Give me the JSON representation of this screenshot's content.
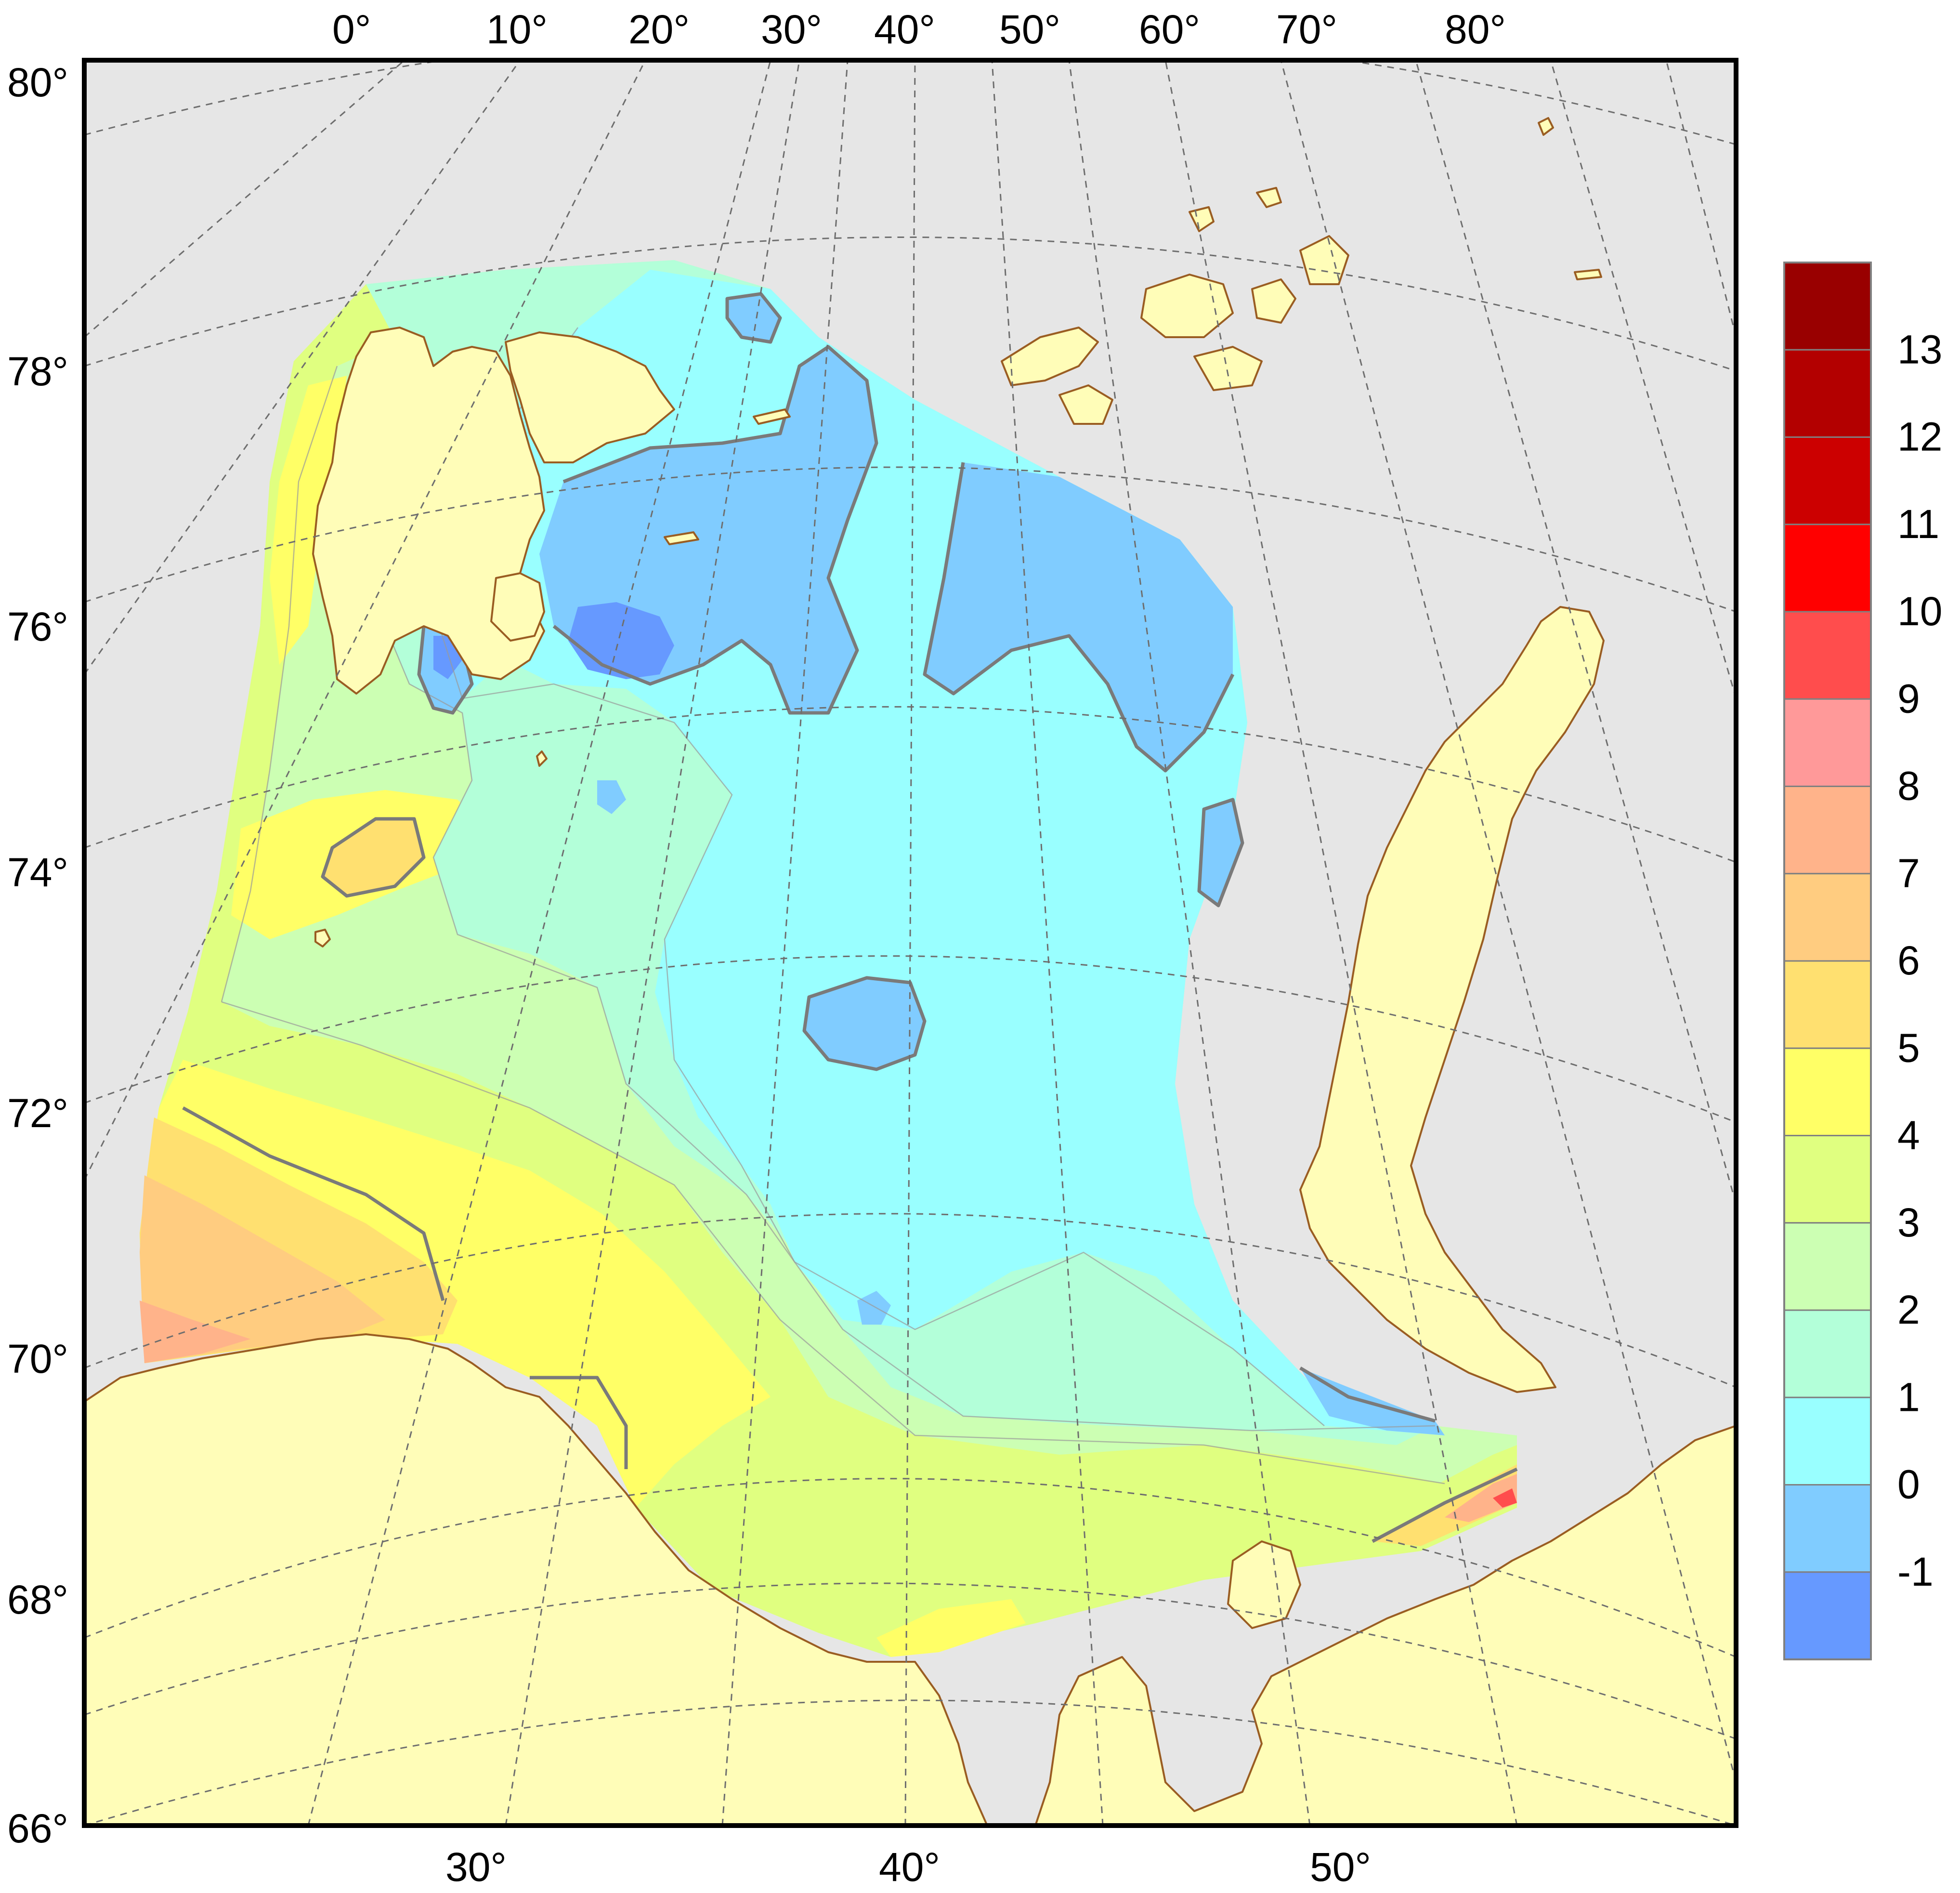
{
  "top_longitude_labels": [
    "0°",
    "10°",
    "20°",
    "30°",
    "40°",
    "50°",
    "60°",
    "70°",
    "80°"
  ],
  "left_latitude_labels": [
    "80°",
    "78°",
    "76°",
    "74°",
    "72°",
    "70°",
    "68°",
    "66°"
  ],
  "bottom_longitude_labels": [
    "30°",
    "40°",
    "50°"
  ],
  "legend": {
    "labels": [
      "13",
      "12",
      "11",
      "10",
      "9",
      "8",
      "7",
      "6",
      "5",
      "4",
      "3",
      "2",
      "1",
      "0",
      "-1"
    ],
    "colors": [
      "#990000",
      "#b30000",
      "#cc0000",
      "#ff0000",
      "#ff4d4d",
      "#ff9999",
      "#ffb38a",
      "#ffcc80",
      "#ffe070",
      "#ffff66",
      "#e0ff80",
      "#ccffb3",
      "#b3ffd9",
      "#99ffff",
      "#80ccff",
      "#6699ff"
    ]
  },
  "colors": {
    "land": "#fffdb8",
    "coastline": "#9a5d22",
    "no_data_sea": "#e6e6e6",
    "frame": "#000000"
  }
}
